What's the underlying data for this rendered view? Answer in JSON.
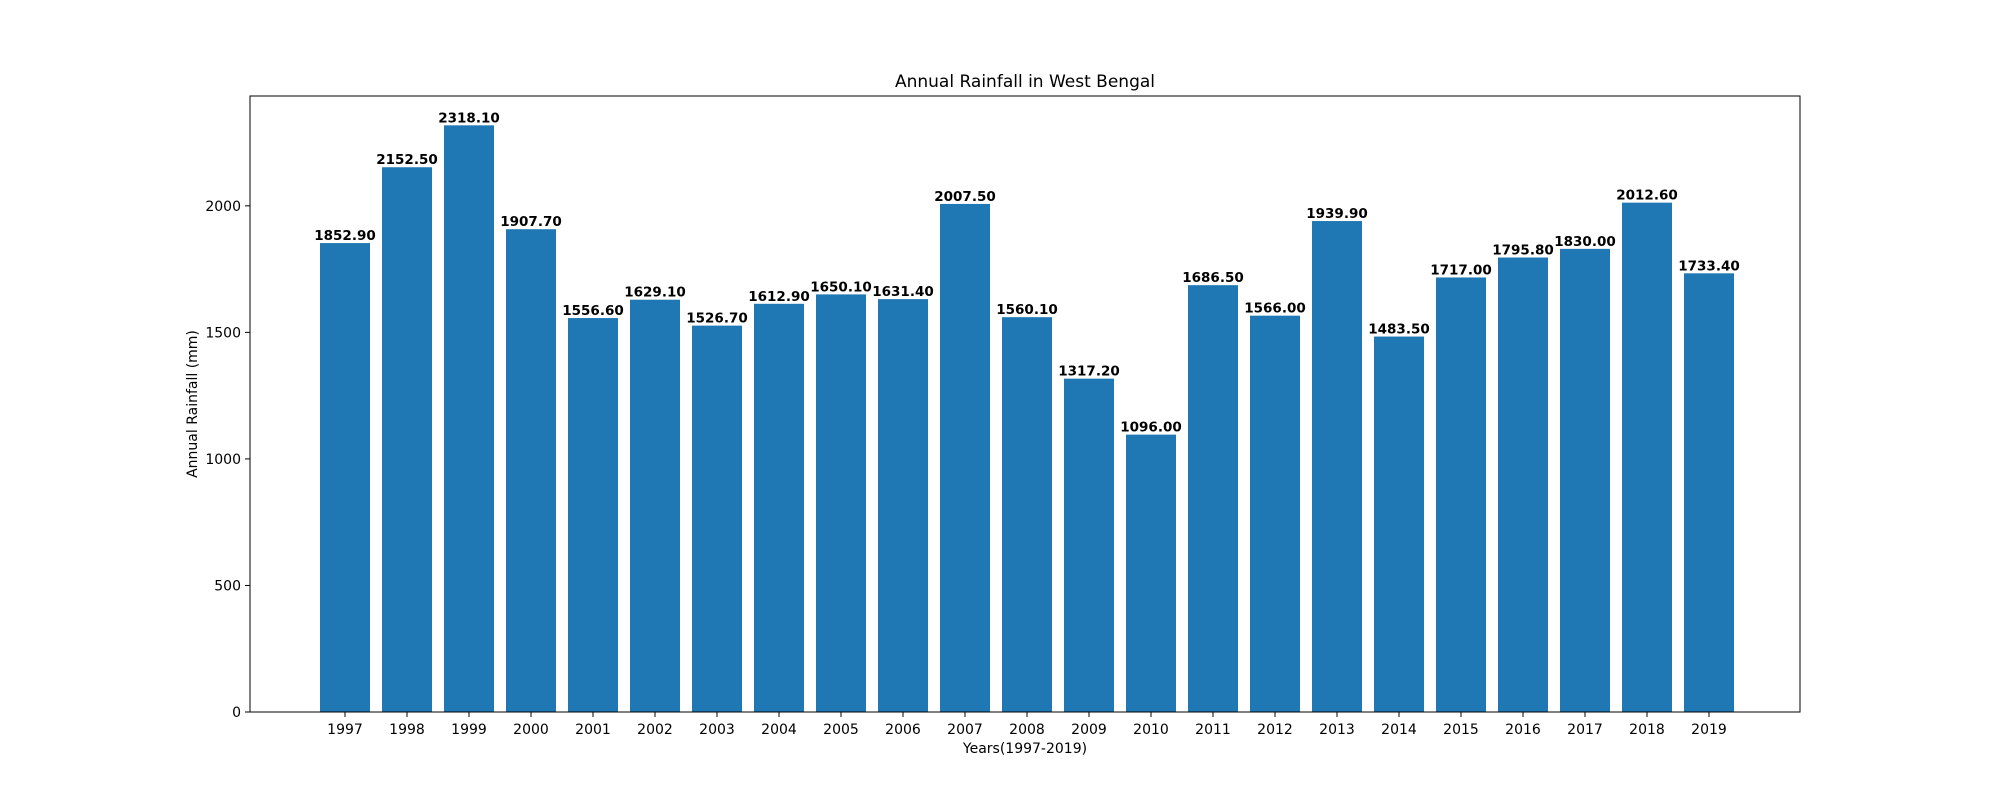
{
  "chart_data": {
    "type": "bar",
    "title": "Annual Rainfall in West Bengal",
    "xlabel": "Years(1997-2019)",
    "ylabel": "Annual Rainfall (mm)",
    "categories": [
      "1997",
      "1998",
      "1999",
      "2000",
      "2001",
      "2002",
      "2003",
      "2004",
      "2005",
      "2006",
      "2007",
      "2008",
      "2009",
      "2010",
      "2011",
      "2012",
      "2013",
      "2014",
      "2015",
      "2016",
      "2017",
      "2018",
      "2019"
    ],
    "values": [
      1852.9,
      2152.5,
      2318.1,
      1907.7,
      1556.6,
      1629.1,
      1526.7,
      1612.9,
      1650.1,
      1631.4,
      2007.5,
      1560.1,
      1317.2,
      1096.0,
      1686.5,
      1566.0,
      1939.9,
      1483.5,
      1717.0,
      1795.8,
      1830.0,
      2012.6,
      1733.4
    ],
    "value_labels": [
      "1852.90",
      "2152.50",
      "2318.10",
      "1907.70",
      "1556.60",
      "1629.10",
      "1526.70",
      "1612.90",
      "1650.10",
      "1631.40",
      "2007.50",
      "1560.10",
      "1317.20",
      "1096.00",
      "1686.50",
      "1566.00",
      "1939.90",
      "1483.50",
      "1717.00",
      "1795.80",
      "1830.00",
      "2012.60",
      "1733.40"
    ],
    "yticks": [
      0,
      500,
      1000,
      1500,
      2000
    ],
    "ylim": [
      0,
      2434
    ],
    "bar_color": "#1f77b4",
    "grid": false,
    "legend": false
  }
}
